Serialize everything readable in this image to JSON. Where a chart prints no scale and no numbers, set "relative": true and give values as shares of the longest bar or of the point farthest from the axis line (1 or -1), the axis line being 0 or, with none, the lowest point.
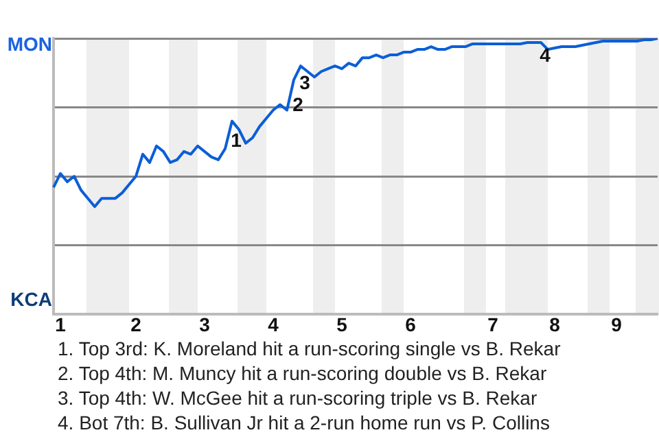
{
  "chart_data": {
    "type": "line",
    "relative": true,
    "categories": [
      null,
      "1",
      null,
      null,
      null,
      null,
      null,
      null,
      null,
      null,
      null,
      null,
      "2",
      null,
      null,
      null,
      null,
      null,
      null,
      null,
      null,
      null,
      "3",
      null,
      null,
      null,
      null,
      null,
      null,
      null,
      null,
      null,
      "4",
      null,
      null,
      null,
      null,
      null,
      null,
      null,
      null,
      null,
      "5",
      null,
      null,
      null,
      null,
      null,
      null,
      null,
      null,
      null,
      "6",
      null,
      null,
      null,
      null,
      null,
      null,
      null,
      null,
      null,
      null,
      null,
      "7",
      null,
      null,
      null,
      null,
      null,
      null,
      null,
      null,
      "8",
      null,
      null,
      null,
      null,
      null,
      null,
      null,
      null,
      "9",
      null,
      null,
      null,
      null,
      null,
      null
    ],
    "series": [
      {
        "color": "#0b5ed7",
        "values": [
          0.46,
          0.51,
          0.48,
          0.5,
          0.45,
          0.42,
          0.39,
          0.42,
          0.42,
          0.42,
          0.44,
          0.47,
          0.5,
          0.58,
          0.55,
          0.61,
          0.59,
          0.55,
          0.56,
          0.59,
          0.58,
          0.61,
          0.59,
          0.57,
          0.56,
          0.6,
          0.7,
          0.67,
          0.62,
          0.64,
          0.68,
          0.71,
          0.74,
          0.76,
          0.74,
          0.85,
          0.9,
          0.88,
          0.86,
          0.88,
          0.89,
          0.9,
          0.89,
          0.91,
          0.9,
          0.93,
          0.93,
          0.94,
          0.93,
          0.94,
          0.94,
          0.95,
          0.95,
          0.96,
          0.96,
          0.97,
          0.96,
          0.96,
          0.97,
          0.97,
          0.97,
          0.98,
          0.98,
          0.98,
          0.98,
          0.98,
          0.98,
          0.98,
          0.98,
          0.985,
          0.985,
          0.985,
          0.96,
          0.965,
          0.97,
          0.97,
          0.97,
          0.975,
          0.98,
          0.985,
          0.99,
          0.99,
          0.99,
          0.99,
          0.99,
          0.99,
          0.995,
          0.995,
          1
        ]
      }
    ],
    "grid": "y",
    "marker": "none",
    "line_style": "solid",
    "legend": false,
    "annotations": [
      "MON",
      "KCA",
      "1",
      "2",
      "3",
      "4",
      "1. Top 3rd: K. Moreland hit a run-scoring single vs B. Rekar",
      "2. Top 4th: M. Muncy hit a run-scoring double vs B. Rekar",
      "3. Top 4th: W. McGee hit a run-scoring triple vs B. Rekar",
      "4. Bot 7th: B. Sullivan Jr hit a 2-run home run vs P. Collins"
    ]
  }
}
